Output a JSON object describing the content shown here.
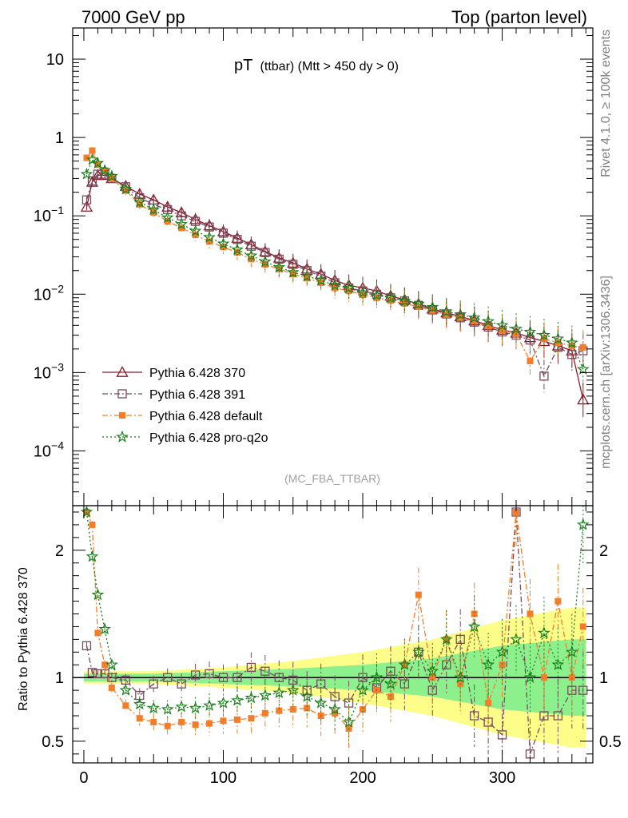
{
  "header": {
    "left": "7000 GeV pp",
    "right": "Top (parton level)"
  },
  "side": {
    "rivet": "Rivet 4.1.0, ≥ 100k events",
    "mcplots": "mcplots.cern.ch [arXiv:1306.3436]"
  },
  "colors": {
    "p370": "#8b1a2b",
    "p391": "#7a4a5e",
    "default": "#f47d2a",
    "proq2o": "#1a7f1a",
    "band_yellow": "#fdfd8a",
    "band_green": "#8cf08c"
  },
  "chart_data": {
    "type": "line",
    "title": "pT",
    "title_sub": "(ttbar) (Mtt > 450 dy > 0)",
    "analysis_tag": "(MC_FBA_TTBAR)",
    "xlabel": "",
    "ylabel": "",
    "xlim": [
      -8,
      365
    ],
    "xticks": [
      "0",
      "100",
      "200",
      "300"
    ],
    "main": {
      "yscale": "log",
      "ylim": [
        2e-05,
        25
      ],
      "yticks": [
        "10",
        "1",
        "10^-1",
        "10^-2",
        "10^-3",
        "10^-4"
      ]
    },
    "ratio": {
      "ylabel": "Ratio to Pythia 6.428 370",
      "ylim": [
        0.33,
        2.35
      ],
      "yticks": [
        "2",
        "1",
        "0.5"
      ]
    },
    "legend": {
      "position": "bottom-left",
      "entries": [
        {
          "label": "Pythia 6.428 370",
          "series": "p370",
          "marker": "triangle",
          "dash": "solid"
        },
        {
          "label": "Pythia 6.428 391",
          "series": "p391",
          "marker": "square-open",
          "dash": "dashdot"
        },
        {
          "label": "Pythia 6.428 default",
          "series": "default",
          "marker": "square-filled",
          "dash": "dashdot"
        },
        {
          "label": "Pythia 6.428 pro-q2o",
          "series": "proq2o",
          "marker": "star",
          "dash": "dotted"
        }
      ]
    },
    "series": [
      {
        "name": "Pythia 6.428 370",
        "key": "p370",
        "x": [
          2,
          6,
          10,
          15,
          20,
          30,
          40,
          50,
          60,
          70,
          80,
          90,
          100,
          110,
          120,
          130,
          140,
          150,
          160,
          170,
          180,
          190,
          200,
          210,
          220,
          230,
          240,
          250,
          260,
          270,
          280,
          290,
          300,
          310,
          320,
          330,
          340,
          350,
          358
        ],
        "y": [
          0.13,
          0.27,
          0.33,
          0.33,
          0.3,
          0.24,
          0.19,
          0.16,
          0.13,
          0.11,
          0.09,
          0.075,
          0.063,
          0.052,
          0.043,
          0.035,
          0.029,
          0.025,
          0.021,
          0.018,
          0.015,
          0.013,
          0.012,
          0.011,
          0.0095,
          0.0085,
          0.0075,
          0.0065,
          0.0058,
          0.0052,
          0.0046,
          0.004,
          0.0035,
          0.0032,
          0.0028,
          0.0025,
          0.0022,
          0.0019,
          0.00045
        ]
      },
      {
        "name": "Pythia 6.428 391",
        "key": "p391",
        "x": [
          2,
          6,
          10,
          15,
          20,
          30,
          40,
          50,
          60,
          70,
          80,
          90,
          100,
          110,
          120,
          130,
          140,
          150,
          160,
          170,
          180,
          190,
          200,
          210,
          220,
          230,
          240,
          250,
          260,
          270,
          280,
          290,
          300,
          310,
          320,
          330,
          340,
          350,
          358
        ],
        "y": [
          0.16,
          0.28,
          0.34,
          0.34,
          0.3,
          0.235,
          0.17,
          0.14,
          0.12,
          0.1,
          0.085,
          0.072,
          0.06,
          0.05,
          0.041,
          0.034,
          0.028,
          0.024,
          0.02,
          0.017,
          0.014,
          0.012,
          0.011,
          0.01,
          0.009,
          0.0082,
          0.0072,
          0.0063,
          0.0056,
          0.005,
          0.0044,
          0.0038,
          0.0033,
          0.003,
          0.0026,
          0.0009,
          0.0021,
          0.0017,
          0.0019
        ]
      },
      {
        "name": "Pythia 6.428 default",
        "key": "default",
        "x": [
          2,
          6,
          10,
          15,
          20,
          30,
          40,
          50,
          60,
          70,
          80,
          90,
          100,
          110,
          120,
          130,
          140,
          150,
          160,
          170,
          180,
          190,
          200,
          210,
          220,
          230,
          240,
          250,
          260,
          270,
          280,
          290,
          300,
          310,
          320,
          330,
          340,
          350,
          358
        ],
        "y": [
          0.55,
          0.68,
          0.45,
          0.38,
          0.3,
          0.21,
          0.14,
          0.11,
          0.085,
          0.07,
          0.057,
          0.047,
          0.04,
          0.034,
          0.028,
          0.024,
          0.021,
          0.018,
          0.016,
          0.014,
          0.012,
          0.011,
          0.0098,
          0.009,
          0.0083,
          0.0076,
          0.0069,
          0.0062,
          0.0055,
          0.005,
          0.0045,
          0.0039,
          0.0035,
          0.0031,
          0.0014,
          0.0027,
          0.0024,
          0.0022,
          0.0021
        ]
      },
      {
        "name": "Pythia 6.428 pro-q2o",
        "key": "proq2o",
        "x": [
          2,
          6,
          10,
          15,
          20,
          30,
          40,
          50,
          60,
          70,
          80,
          90,
          100,
          110,
          120,
          130,
          140,
          150,
          160,
          170,
          180,
          190,
          200,
          210,
          220,
          230,
          240,
          250,
          260,
          270,
          280,
          290,
          300,
          310,
          320,
          330,
          340,
          350,
          358
        ],
        "y": [
          0.34,
          0.52,
          0.47,
          0.38,
          0.32,
          0.22,
          0.15,
          0.12,
          0.095,
          0.078,
          0.064,
          0.053,
          0.044,
          0.037,
          0.031,
          0.026,
          0.022,
          0.019,
          0.017,
          0.015,
          0.013,
          0.012,
          0.0105,
          0.0097,
          0.009,
          0.0082,
          0.0075,
          0.0068,
          0.006,
          0.0055,
          0.005,
          0.0045,
          0.004,
          0.0036,
          0.0033,
          0.003,
          0.0027,
          0.0024,
          0.0011
        ]
      }
    ],
    "ratio_series": [
      {
        "key": "p391",
        "x": [
          2,
          6,
          10,
          15,
          20,
          30,
          40,
          50,
          60,
          70,
          80,
          90,
          100,
          110,
          120,
          130,
          140,
          150,
          160,
          170,
          180,
          190,
          200,
          210,
          220,
          230,
          240,
          250,
          260,
          270,
          280,
          290,
          300,
          310,
          320,
          330,
          340,
          350,
          358
        ],
        "y": [
          1.25,
          1.04,
          1.03,
          1.03,
          1.0,
          0.98,
          0.86,
          0.95,
          1.0,
          0.95,
          1.02,
          1.03,
          1.0,
          1.0,
          1.08,
          1.05,
          1.0,
          0.98,
          0.9,
          0.95,
          0.85,
          0.8,
          1.0,
          0.92,
          1.05,
          0.95,
          1.2,
          0.9,
          1.1,
          1.3,
          0.7,
          0.65,
          0.55,
          2.3,
          0.4,
          0.7,
          0.7,
          0.9,
          0.9
        ]
      },
      {
        "key": "default",
        "x": [
          2,
          6,
          10,
          15,
          20,
          30,
          40,
          50,
          60,
          70,
          80,
          90,
          100,
          110,
          120,
          130,
          140,
          150,
          160,
          170,
          180,
          190,
          200,
          210,
          220,
          230,
          240,
          250,
          260,
          270,
          280,
          290,
          300,
          310,
          320,
          330,
          340,
          350,
          358
        ],
        "y": [
          2.3,
          2.2,
          1.35,
          1.1,
          0.92,
          0.78,
          0.68,
          0.65,
          0.62,
          0.65,
          0.63,
          0.64,
          0.66,
          0.67,
          0.68,
          0.72,
          0.74,
          0.75,
          0.76,
          0.7,
          0.72,
          0.6,
          0.75,
          0.9,
          0.85,
          1.1,
          1.65,
          1.0,
          1.3,
          0.95,
          1.5,
          0.8,
          1.1,
          2.3,
          1.5,
          1.0,
          1.6,
          1.0,
          1.4
        ]
      },
      {
        "key": "proq2o",
        "x": [
          2,
          6,
          10,
          15,
          20,
          30,
          40,
          50,
          60,
          70,
          80,
          90,
          100,
          110,
          120,
          130,
          140,
          150,
          160,
          170,
          180,
          190,
          200,
          210,
          220,
          230,
          240,
          250,
          260,
          270,
          280,
          290,
          300,
          310,
          320,
          330,
          340,
          350,
          358
        ],
        "y": [
          2.3,
          1.95,
          1.65,
          1.38,
          1.1,
          0.9,
          0.79,
          0.76,
          0.75,
          0.77,
          0.76,
          0.78,
          0.8,
          0.82,
          0.84,
          0.86,
          0.88,
          0.9,
          0.85,
          0.8,
          0.75,
          0.65,
          0.9,
          1.0,
          0.95,
          1.1,
          1.2,
          1.05,
          1.3,
          1.0,
          1.4,
          1.1,
          1.2,
          1.3,
          1.0,
          1.35,
          1.1,
          1.2,
          2.2
        ]
      }
    ],
    "band_yellow": {
      "x": [
        0,
        50,
        100,
        150,
        200,
        250,
        300,
        350,
        360
      ],
      "lo": [
        0.95,
        0.95,
        0.92,
        0.88,
        0.8,
        0.7,
        0.55,
        0.45,
        0.45
      ],
      "hi": [
        1.05,
        1.05,
        1.08,
        1.13,
        1.2,
        1.3,
        1.45,
        1.55,
        1.55
      ]
    },
    "band_green": {
      "x": [
        0,
        50,
        100,
        150,
        200,
        250,
        300,
        350,
        360
      ],
      "lo": [
        0.97,
        0.97,
        0.95,
        0.93,
        0.9,
        0.85,
        0.75,
        0.7,
        0.7
      ],
      "hi": [
        1.03,
        1.03,
        1.05,
        1.07,
        1.1,
        1.15,
        1.25,
        1.3,
        1.3
      ]
    }
  }
}
